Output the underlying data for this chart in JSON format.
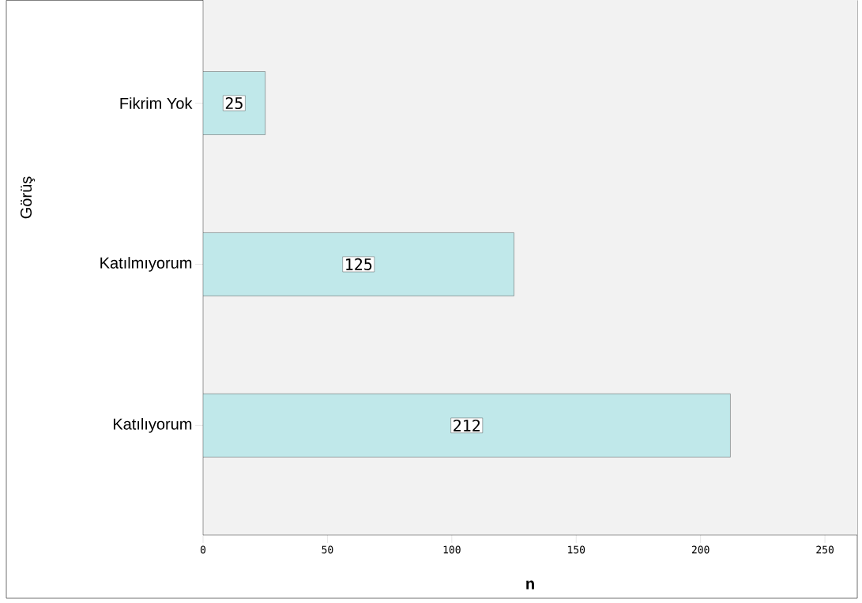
{
  "chart_data": {
    "type": "bar",
    "orientation": "horizontal",
    "categories": [
      "Fikrim Yok",
      "Katılmıyorum",
      "Katılıyorum"
    ],
    "values": [
      25,
      125,
      212
    ],
    "color": "#c0e8ea",
    "xlabel": "n",
    "ylabel": "Görüş",
    "xlim": [
      0,
      263
    ],
    "xticks": [
      0,
      50,
      100,
      150,
      200,
      250
    ],
    "data_labels": true
  }
}
